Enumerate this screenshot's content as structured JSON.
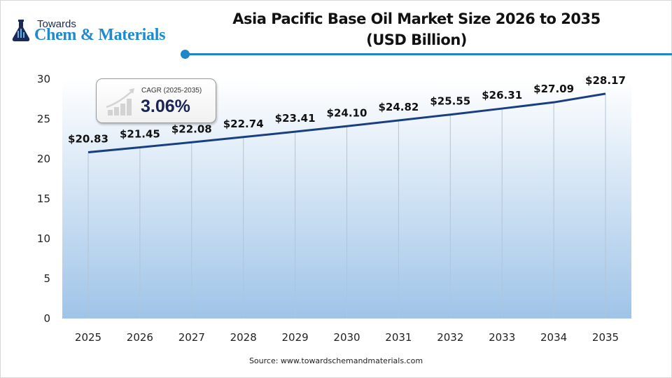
{
  "brand": {
    "name_small": "Towards",
    "name_big": "Chem & Materials",
    "logo_icon": "flask-icon"
  },
  "header": {
    "title_line1": "Asia Pacific Base Oil Market Size 2026 to 2035",
    "title_line2": "(USD Billion)",
    "accent_color": "#1f86c7"
  },
  "cagr": {
    "label": "CAGR (2025-2035)",
    "value": "3.06%",
    "icon": "growth-chart-icon"
  },
  "footer": {
    "source": "Source:  www.towardschemandmaterials.com"
  },
  "chart_data": {
    "type": "area",
    "title": "Asia Pacific Base Oil Market Size 2026 to 2035 (USD Billion)",
    "xlabel": "",
    "ylabel": "",
    "categories": [
      "2025",
      "2026",
      "2027",
      "2028",
      "2029",
      "2030",
      "2031",
      "2032",
      "2033",
      "2034",
      "2035"
    ],
    "values": [
      20.83,
      21.45,
      22.08,
      22.74,
      23.41,
      24.1,
      24.82,
      25.55,
      26.31,
      27.09,
      28.17
    ],
    "data_labels": [
      "$20.83",
      "$21.45",
      "$22.08",
      "$22.74",
      "$23.41",
      "$24.10",
      "$24.82",
      "$25.55",
      "$26.31",
      "$27.09",
      "$28.17"
    ],
    "ylim": [
      0,
      30
    ],
    "yticks": [
      0,
      5,
      10,
      15,
      20,
      25,
      30
    ],
    "grid": "vertical lines at categories",
    "legend": "none",
    "line_color": "#1a3f80",
    "fill_gradient": [
      "#ffffff",
      "#9fc4e8"
    ],
    "annotation": "CAGR (2025-2035) 3.06%"
  }
}
